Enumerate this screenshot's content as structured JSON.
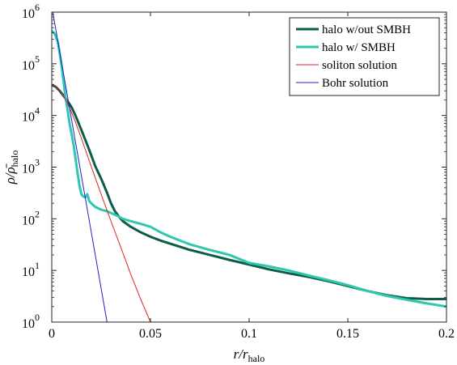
{
  "chart_data": {
    "type": "line",
    "xlabel": "r/r_halo",
    "ylabel": "ρ/ρ̄_halo",
    "xlim": [
      0,
      0.2
    ],
    "ylim": [
      1,
      1000000
    ],
    "yscale": "log",
    "grid": false,
    "legend_position": "top-right",
    "x_ticks": [
      "0",
      "0.05",
      "0.1",
      "0.15",
      "0.2"
    ],
    "y_ticks": [
      {
        "base": "10",
        "exp": "0"
      },
      {
        "base": "10",
        "exp": "1"
      },
      {
        "base": "10",
        "exp": "2"
      },
      {
        "base": "10",
        "exp": "3"
      },
      {
        "base": "10",
        "exp": "4"
      },
      {
        "base": "10",
        "exp": "5"
      },
      {
        "base": "10",
        "exp": "6"
      }
    ],
    "series": [
      {
        "name": "halo w/out SMBH",
        "color": "#0d5c4a",
        "width": 3,
        "x": [
          0.0005,
          0.002,
          0.004,
          0.006,
          0.008,
          0.01,
          0.012,
          0.014,
          0.016,
          0.018,
          0.02,
          0.022,
          0.025,
          0.028,
          0.03,
          0.032,
          0.034,
          0.036,
          0.04,
          0.045,
          0.05,
          0.055,
          0.06,
          0.07,
          0.08,
          0.09,
          0.1,
          0.11,
          0.12,
          0.13,
          0.14,
          0.15,
          0.16,
          0.17,
          0.18,
          0.19,
          0.2
        ],
        "y": [
          38000,
          36000,
          30000,
          24000,
          19000,
          14500,
          10000,
          6500,
          4200,
          2700,
          1700,
          1050,
          600,
          320,
          200,
          140,
          110,
          90,
          70,
          55,
          45,
          38,
          33,
          25,
          20,
          16,
          13,
          10.5,
          8.8,
          7.5,
          6.2,
          5.0,
          4.0,
          3.3,
          2.9,
          2.8,
          2.8
        ]
      },
      {
        "name": "halo w/ SMBH",
        "color": "#2ec7b0",
        "width": 3,
        "x": [
          0.0005,
          0.0015,
          0.003,
          0.004,
          0.005,
          0.006,
          0.007,
          0.008,
          0.009,
          0.01,
          0.011,
          0.012,
          0.013,
          0.014,
          0.015,
          0.016,
          0.017,
          0.018,
          0.019,
          0.02,
          0.022,
          0.025,
          0.028,
          0.032,
          0.036,
          0.04,
          0.045,
          0.05,
          0.055,
          0.06,
          0.07,
          0.08,
          0.09,
          0.1,
          0.11,
          0.12,
          0.13,
          0.14,
          0.15,
          0.16,
          0.17,
          0.18,
          0.19,
          0.2
        ],
        "y": [
          420000,
          380000,
          270000,
          160000,
          90000,
          45000,
          22000,
          13000,
          7000,
          4500,
          2800,
          1500,
          800,
          450,
          300,
          270,
          260,
          300,
          220,
          200,
          170,
          150,
          140,
          120,
          100,
          90,
          80,
          70,
          55,
          45,
          32,
          25,
          20,
          14,
          12,
          10,
          8,
          6.5,
          5.2,
          4.0,
          3.2,
          2.7,
          2.3,
          2.0
        ]
      },
      {
        "name": "soliton solution",
        "color": "#e02020",
        "width": 1,
        "x": [
          0.0,
          0.002,
          0.004,
          0.006,
          0.008,
          0.01,
          0.012,
          0.015,
          0.018,
          0.021,
          0.025,
          0.03,
          0.035,
          0.04,
          0.045,
          0.05
        ],
        "y": [
          40000,
          37000,
          31000,
          24000,
          17000,
          11500,
          7500,
          3600,
          1700,
          800,
          300,
          90,
          28,
          8.5,
          2.8,
          1.0
        ]
      },
      {
        "name": "Bohr solution",
        "color": "#2020d0",
        "width": 1,
        "x": [
          0.0005,
          0.028
        ],
        "y": [
          1000000,
          1
        ]
      }
    ]
  }
}
